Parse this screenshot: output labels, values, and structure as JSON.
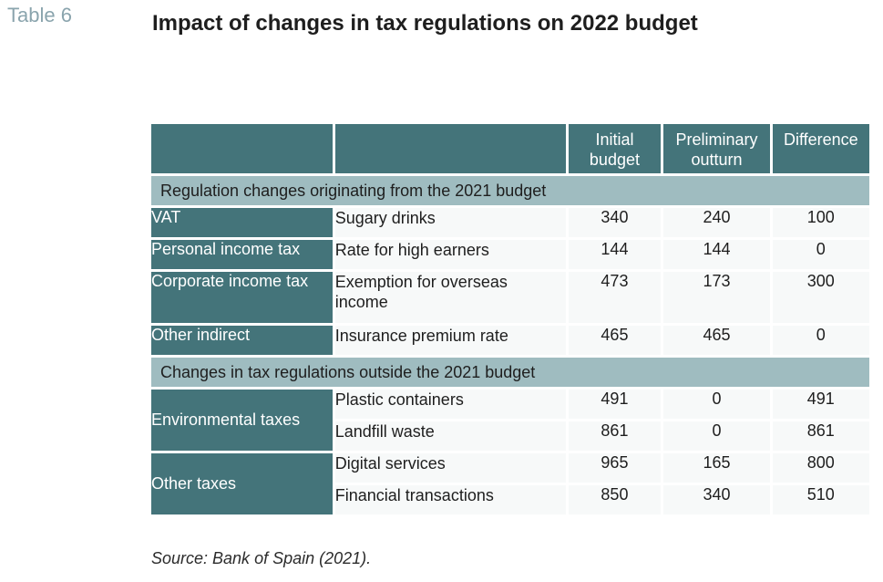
{
  "table_label": "Table 6",
  "title": "Impact of changes in tax regulations on 2022 budget",
  "columns": {
    "initial_l1": "Initial",
    "initial_l2": "budget",
    "prelim_l1": "Preliminary",
    "prelim_l2": "outturn",
    "difference": "Difference"
  },
  "sections": [
    {
      "heading": "Regulation changes originating from the 2021 budget",
      "rows": [
        {
          "tax": "VAT",
          "item": "Sugary drinks",
          "initial": "340",
          "prelim": "240",
          "diff": "100"
        },
        {
          "tax": "Personal income tax",
          "item": "Rate for high earners",
          "initial": "144",
          "prelim": "144",
          "diff": "0"
        },
        {
          "tax": "Corporate income tax",
          "item_l1": "Exemption for overseas",
          "item_l2": "income",
          "initial": "473",
          "prelim": "173",
          "diff": "300"
        },
        {
          "tax": "Other indirect",
          "item": "Insurance premium rate",
          "initial": "465",
          "prelim": "465",
          "diff": "0"
        }
      ]
    },
    {
      "heading": "Changes in tax regulations outside the 2021 budget",
      "groups": [
        {
          "tax": "Environmental taxes",
          "rows": [
            {
              "item": "Plastic containers",
              "initial": "491",
              "prelim": "0",
              "diff": "491"
            },
            {
              "item": "Landfill waste",
              "initial": "861",
              "prelim": "0",
              "diff": "861"
            }
          ]
        },
        {
          "tax": "Other taxes",
          "rows": [
            {
              "item": "Digital services",
              "initial": "965",
              "prelim": "165",
              "diff": "800"
            },
            {
              "item": "Financial transactions",
              "initial": "850",
              "prelim": "340",
              "diff": "510"
            }
          ]
        }
      ]
    }
  ],
  "source": "Source: Bank of Spain (2021).",
  "colors": {
    "header_bg": "#44747a",
    "section_bg": "#9fbcc0",
    "cell_bg": "#f7f9f9",
    "label_color": "#8aa4ad"
  }
}
